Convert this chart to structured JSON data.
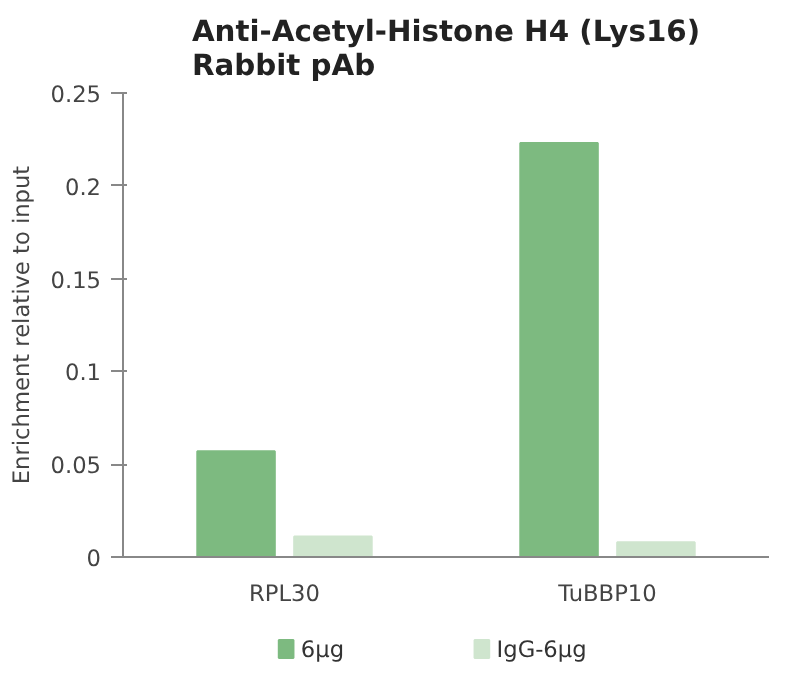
{
  "chart_data": {
    "type": "bar",
    "title": "Anti-Acetyl-Histone H4 (Lys16) Rabbit pAb",
    "ylabel": "Enrichment relative to input",
    "categories": [
      "RPL30",
      "TuBBP10"
    ],
    "series": [
      {
        "name": "6μg",
        "color": "#7dba80",
        "values": [
          0.057,
          0.223
        ]
      },
      {
        "name": "IgG-6μg",
        "color": "#cfe5ce",
        "values": [
          0.011,
          0.008
        ]
      }
    ],
    "ylim": [
      0,
      0.25
    ],
    "yticks": [
      0,
      0.05,
      0.1,
      0.15,
      0.2,
      0.25
    ],
    "grid": false,
    "legend": "bottom"
  }
}
